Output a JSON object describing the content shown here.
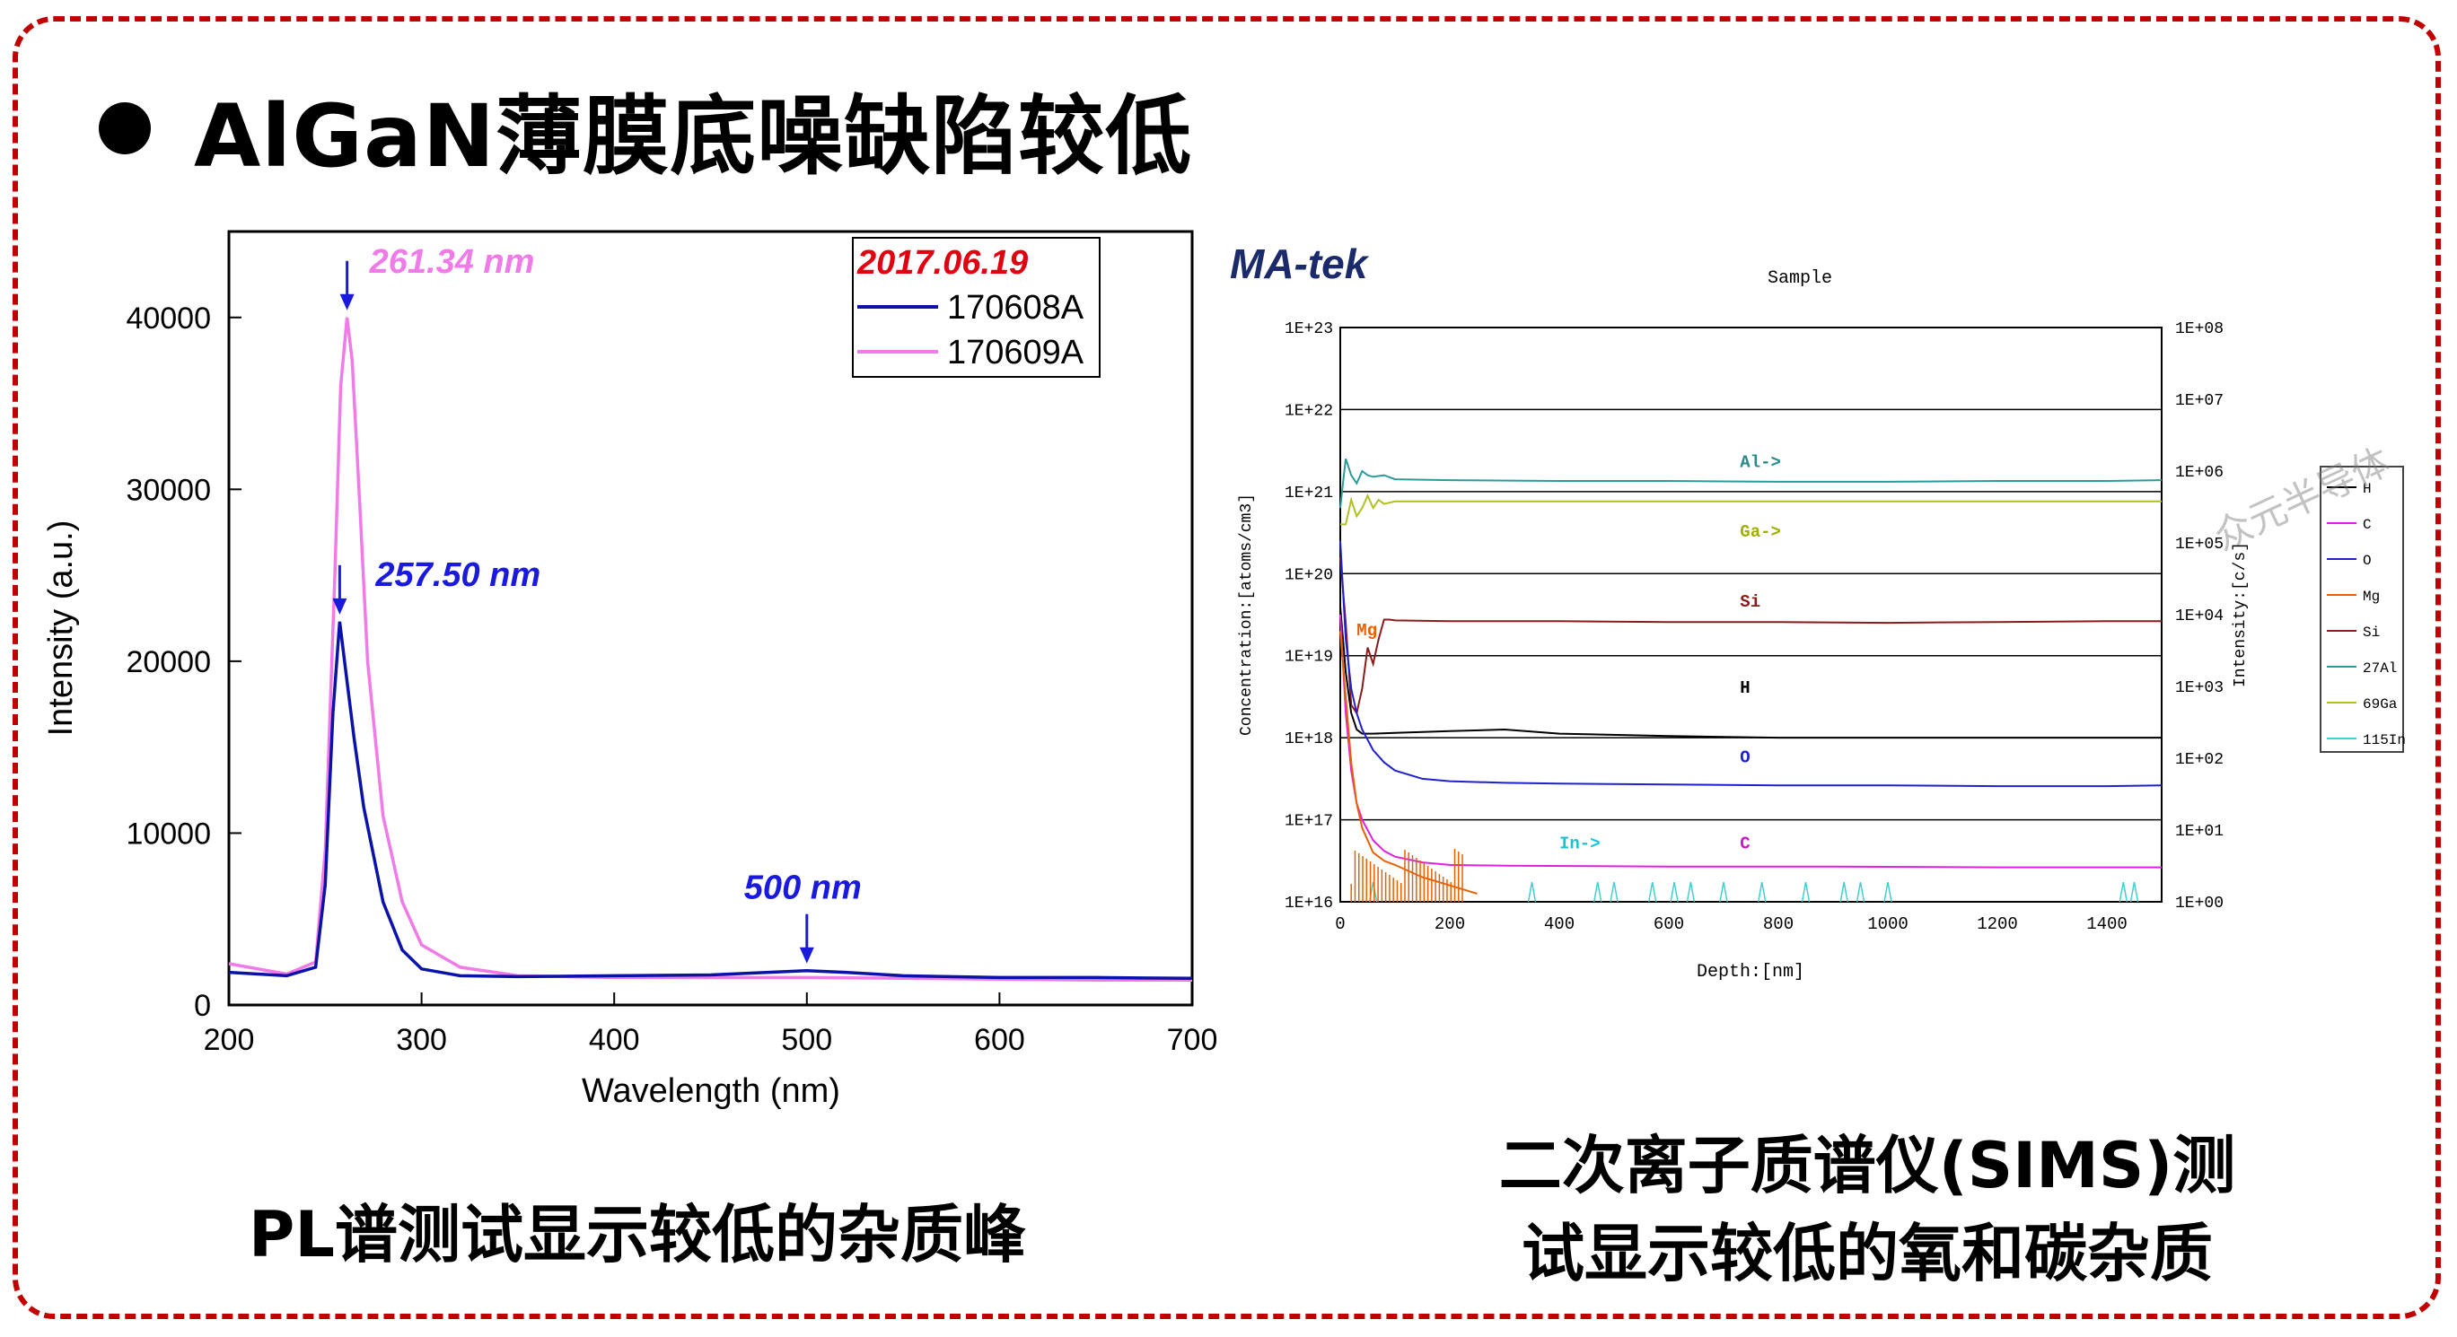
{
  "title": "AlGaN薄膜底噪缺陷较低",
  "captions": {
    "left": "PL谱测试显示较低的杂质峰",
    "right_line1": "二次离子质谱仪(SIMS)测",
    "right_line2": "试显示较低的氧和碳杂质"
  },
  "watermark": "众元半导体",
  "colors": {
    "frame": "#c00000",
    "series_a": "#0a12a8",
    "series_b": "#f07be8"
  },
  "chart_data": [
    {
      "type": "line",
      "xlabel": "Wavelength (nm)",
      "ylabel": "Intensity (a.u.)",
      "xlim": [
        200,
        700
      ],
      "ylim": [
        0,
        45000
      ],
      "xticks": [
        "200",
        "300",
        "400",
        "500",
        "600",
        "700"
      ],
      "yticks": [
        "0",
        "10000",
        "20000",
        "30000",
        "40000"
      ],
      "legend": {
        "title": "2017.06.19",
        "position": "top-right"
      },
      "series": [
        {
          "name": "170608A",
          "color": "#0a12a8",
          "x": [
            200,
            230,
            245,
            250,
            254,
            257.5,
            260,
            265,
            270,
            280,
            290,
            300,
            320,
            350,
            400,
            450,
            480,
            500,
            520,
            550,
            600,
            650,
            700
          ],
          "y": [
            1900,
            1700,
            2200,
            7000,
            17000,
            22300,
            20000,
            15500,
            11500,
            6000,
            3200,
            2100,
            1700,
            1650,
            1700,
            1750,
            1900,
            2000,
            1900,
            1700,
            1600,
            1600,
            1550
          ]
        },
        {
          "name": "170609A",
          "color": "#f07be8",
          "x": [
            200,
            230,
            245,
            250,
            255,
            258,
            261.34,
            264,
            268,
            272,
            280,
            290,
            300,
            320,
            350,
            400,
            450,
            500,
            550,
            600,
            650,
            700
          ],
          "y": [
            2400,
            1800,
            2500,
            9000,
            25000,
            36000,
            40000,
            37500,
            29000,
            20000,
            11000,
            6000,
            3500,
            2200,
            1700,
            1600,
            1600,
            1600,
            1550,
            1500,
            1450,
            1450
          ]
        }
      ],
      "annotations": [
        {
          "text": "261.34 nm",
          "x": 261.34,
          "color": "#f07be8"
        },
        {
          "text": "257.50 nm",
          "x": 257.5,
          "color": "#1a1adf"
        },
        {
          "text": "500 nm",
          "x": 500,
          "color": "#1a1adf"
        }
      ]
    },
    {
      "type": "line",
      "logo": "MA-tek",
      "title": "Sample",
      "xlabel": "Depth:[nm]",
      "ylabel": "Concentration:[atoms/cm3]",
      "ylabel_right": "Intensity:[c/s]",
      "xlim": [
        0,
        1500
      ],
      "ylim_log": [
        16,
        23
      ],
      "yscale": "log",
      "xticks": [
        "0",
        "200",
        "400",
        "600",
        "800",
        "1000",
        "1200",
        "1400"
      ],
      "yticks": [
        "1E+16",
        "1E+17",
        "1E+18",
        "1E+19",
        "1E+20",
        "1E+21",
        "1E+22",
        "1E+23"
      ],
      "yticks_right": [
        "1E+00",
        "1E+01",
        "1E+02",
        "1E+03",
        "1E+04",
        "1E+05",
        "1E+06",
        "1E+07",
        "1E+08"
      ],
      "legend": [
        "H",
        "C",
        "O",
        "Mg",
        "Si",
        "27Al",
        "69Ga",
        "115In"
      ],
      "legend_colors": [
        "#000000",
        "#e020e0",
        "#2020d0",
        "#e86000",
        "#8b1a1a",
        "#2a9a9a",
        "#b0c020",
        "#40d0d0"
      ],
      "labels": [
        {
          "text": "Al->",
          "color": "#2a8a8a"
        },
        {
          "text": "Ga->",
          "color": "#a0b000"
        },
        {
          "text": "Si",
          "color": "#8b1a1a"
        },
        {
          "text": "H",
          "color": "#000000"
        },
        {
          "text": "O",
          "color": "#2020d0"
        },
        {
          "text": "In->",
          "color": "#20c0d0"
        },
        {
          "text": "C",
          "color": "#d010d0"
        },
        {
          "text": "Mg",
          "color": "#e86000"
        }
      ],
      "series": [
        {
          "name": "27Al",
          "x": [
            0,
            5,
            10,
            15,
            20,
            30,
            40,
            50,
            60,
            80,
            100,
            200,
            400,
            600,
            800,
            1000,
            1200,
            1400,
            1500
          ],
          "y": [
            20.8,
            21.1,
            21.4,
            21.3,
            21.2,
            21.1,
            21.25,
            21.2,
            21.18,
            21.2,
            21.15,
            21.14,
            21.13,
            21.13,
            21.12,
            21.12,
            21.13,
            21.13,
            21.14
          ]
        },
        {
          "name": "69Ga",
          "x": [
            0,
            10,
            20,
            30,
            40,
            50,
            60,
            70,
            80,
            100,
            150,
            200,
            400,
            600,
            800,
            1000,
            1200,
            1400,
            1500
          ],
          "y": [
            20.6,
            20.6,
            20.9,
            20.7,
            20.8,
            20.95,
            20.8,
            20.9,
            20.85,
            20.88,
            20.88,
            20.88,
            20.88,
            20.88,
            20.88,
            20.88,
            20.88,
            20.88,
            20.88
          ]
        },
        {
          "name": "Si",
          "x": [
            0,
            10,
            20,
            30,
            40,
            50,
            60,
            70,
            80,
            90,
            100,
            200,
            300,
            400,
            600,
            800,
            1000,
            1200,
            1400,
            1500
          ],
          "y": [
            20.2,
            19.4,
            18.4,
            18.3,
            18.6,
            19.1,
            18.9,
            19.2,
            19.44,
            19.44,
            19.43,
            19.42,
            19.42,
            19.42,
            19.41,
            19.41,
            19.4,
            19.41,
            19.42,
            19.42
          ]
        },
        {
          "name": "H",
          "x": [
            0,
            10,
            20,
            30,
            40,
            60,
            100,
            200,
            300,
            400,
            600,
            800,
            1000,
            1200,
            1400,
            1500
          ],
          "y": [
            19.6,
            18.8,
            18.3,
            18.1,
            18.05,
            18.05,
            18.06,
            18.08,
            18.1,
            18.05,
            18.02,
            18.0,
            18.0,
            18.0,
            18.0,
            18.0
          ]
        },
        {
          "name": "O",
          "x": [
            0,
            10,
            20,
            30,
            40,
            60,
            80,
            100,
            150,
            200,
            300,
            400,
            600,
            800,
            1000,
            1200,
            1400,
            1500
          ],
          "y": [
            20.4,
            19.2,
            18.6,
            18.3,
            18.1,
            17.85,
            17.7,
            17.6,
            17.5,
            17.47,
            17.45,
            17.44,
            17.43,
            17.42,
            17.42,
            17.41,
            17.41,
            17.42
          ]
        },
        {
          "name": "C",
          "x": [
            0,
            10,
            20,
            30,
            40,
            60,
            80,
            100,
            150,
            200,
            300,
            600,
            900,
            1200,
            1400,
            1500
          ],
          "y": [
            19.5,
            18.3,
            17.6,
            17.2,
            17.0,
            16.75,
            16.62,
            16.55,
            16.48,
            16.45,
            16.44,
            16.43,
            16.43,
            16.42,
            16.42,
            16.42
          ]
        },
        {
          "name": "Mg",
          "x": [
            0,
            10,
            20,
            30,
            40,
            60,
            80,
            100,
            150,
            200,
            250
          ],
          "y": [
            19.3,
            18.5,
            17.7,
            17.2,
            16.9,
            16.6,
            16.5,
            16.45,
            16.3,
            16.2,
            16.1
          ]
        }
      ]
    }
  ]
}
